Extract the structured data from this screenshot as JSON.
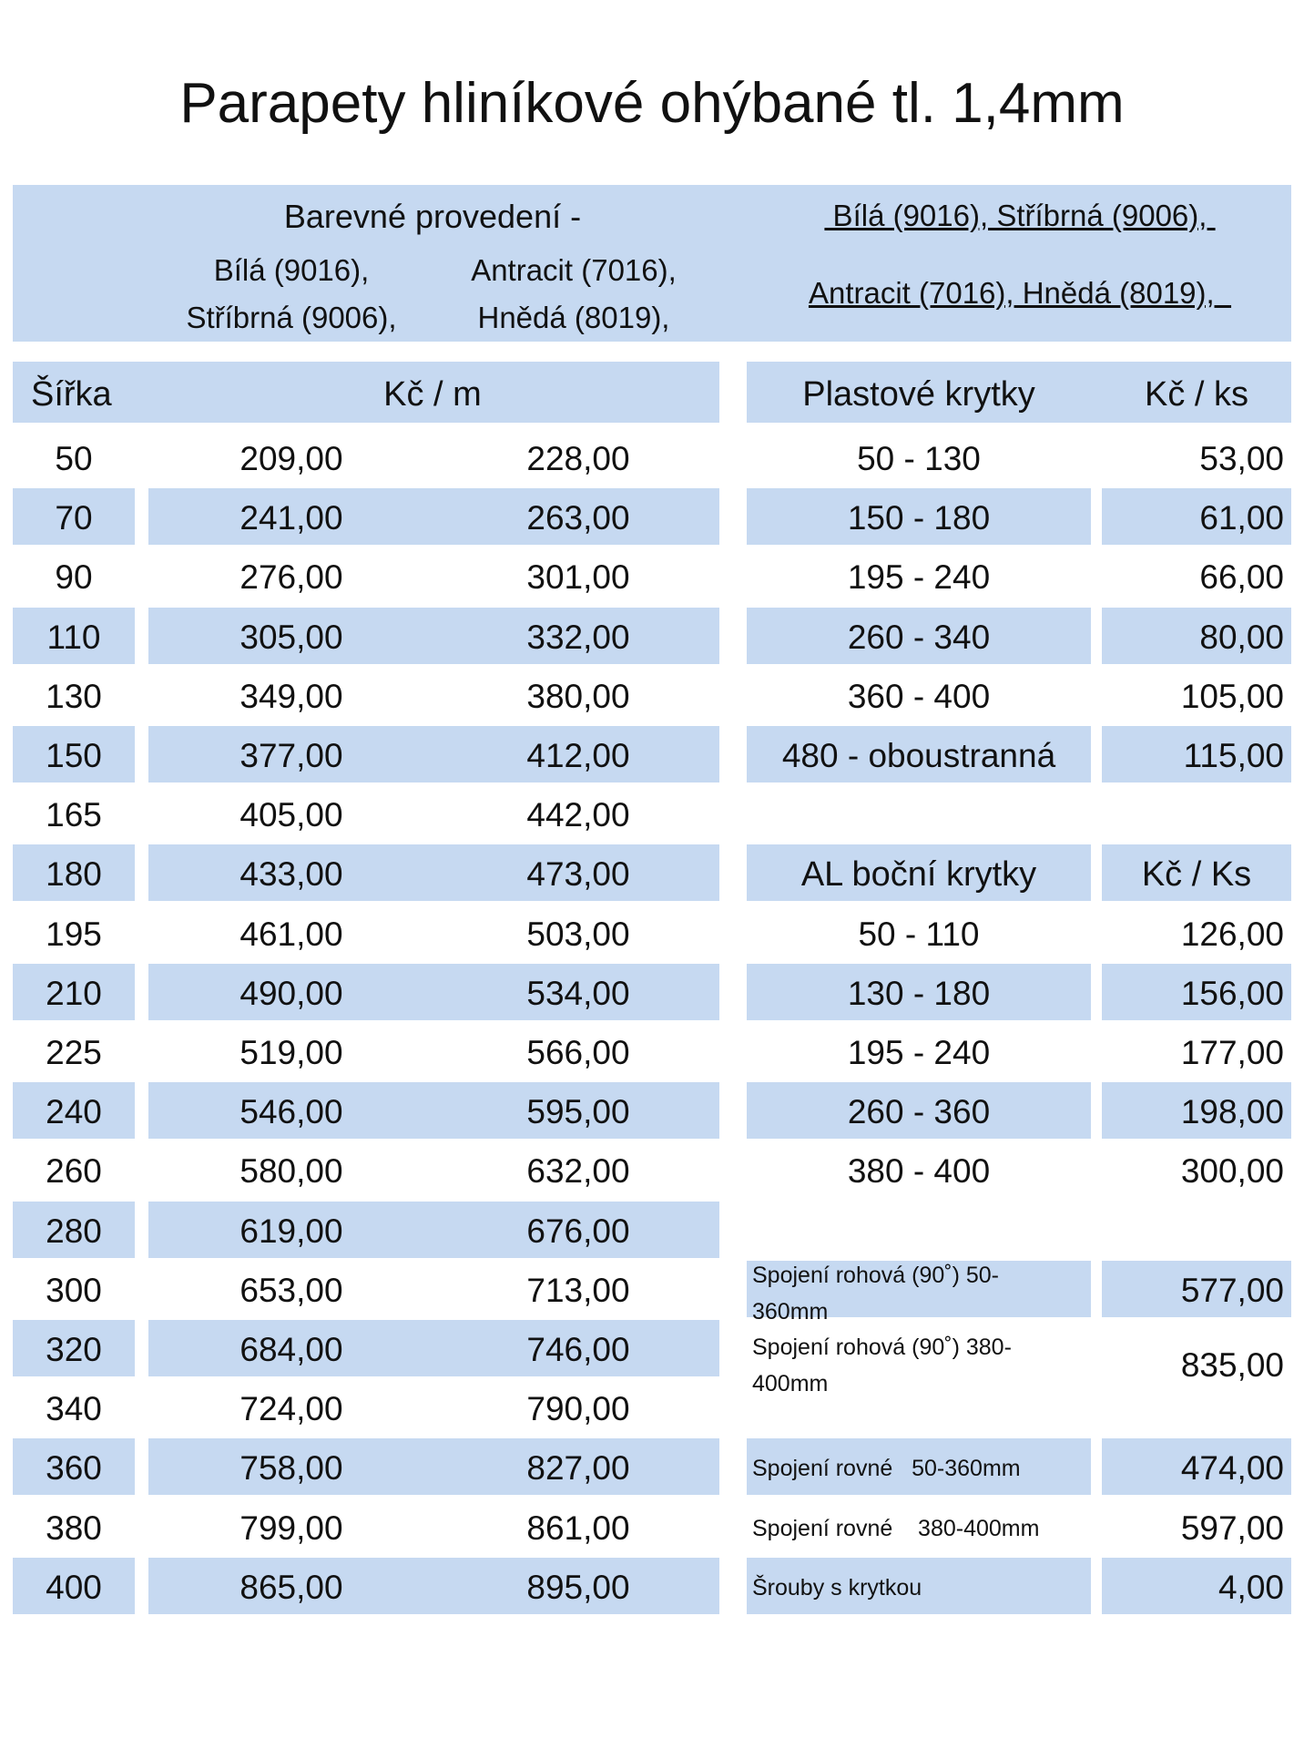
{
  "title": "Parapety hliníkové ohýbané tl. 1,4mm",
  "colors": {
    "band": "#c6d9f1",
    "text": "#111111",
    "background": "#ffffff"
  },
  "header": {
    "left_heading": "Barevné provedení -",
    "col1_line1": "Bílá (9016),",
    "col1_line2": "Stříbrná (9006),",
    "col2_line1": "Antracit (7016),",
    "col2_line2": "Hnědá (8019),",
    "right_line1": " Bílá (9016), Stříbrná (9006), ",
    "right_line2": "Antracit (7016), Hnědá (8019),  "
  },
  "main_table": {
    "width_label": "Šířka",
    "price_label": "Kč / m",
    "rows": [
      {
        "width": "50",
        "price1": "209,00",
        "price2": "228,00"
      },
      {
        "width": "70",
        "price1": "241,00",
        "price2": "263,00"
      },
      {
        "width": "90",
        "price1": "276,00",
        "price2": "301,00"
      },
      {
        "width": "110",
        "price1": "305,00",
        "price2": "332,00"
      },
      {
        "width": "130",
        "price1": "349,00",
        "price2": "380,00"
      },
      {
        "width": "150",
        "price1": "377,00",
        "price2": "412,00"
      },
      {
        "width": "165",
        "price1": "405,00",
        "price2": "442,00"
      },
      {
        "width": "180",
        "price1": "433,00",
        "price2": "473,00"
      },
      {
        "width": "195",
        "price1": "461,00",
        "price2": "503,00"
      },
      {
        "width": "210",
        "price1": "490,00",
        "price2": "534,00"
      },
      {
        "width": "225",
        "price1": "519,00",
        "price2": "566,00"
      },
      {
        "width": "240",
        "price1": "546,00",
        "price2": "595,00"
      },
      {
        "width": "260",
        "price1": "580,00",
        "price2": "632,00"
      },
      {
        "width": "280",
        "price1": "619,00",
        "price2": "676,00"
      },
      {
        "width": "300",
        "price1": "653,00",
        "price2": "713,00"
      },
      {
        "width": "320",
        "price1": "684,00",
        "price2": "746,00"
      },
      {
        "width": "340",
        "price1": "724,00",
        "price2": "790,00"
      },
      {
        "width": "360",
        "price1": "758,00",
        "price2": "827,00"
      },
      {
        "width": "380",
        "price1": "799,00",
        "price2": "861,00"
      },
      {
        "width": "400",
        "price1": "865,00",
        "price2": "895,00"
      }
    ]
  },
  "plastic_caps": {
    "label": "Plastové krytky",
    "unit": "Kč / ks",
    "rows": [
      {
        "range": "50  - 130",
        "price": "53,00"
      },
      {
        "range": "150 - 180",
        "price": "61,00"
      },
      {
        "range": "195 - 240",
        "price": "66,00"
      },
      {
        "range": "260 - 340",
        "price": "80,00"
      },
      {
        "range": "360 - 400",
        "price": "105,00"
      },
      {
        "range": "480 - oboustranná",
        "price": "115,00"
      }
    ]
  },
  "al_caps": {
    "label": "AL boční krytky",
    "unit": "Kč / Ks",
    "rows": [
      {
        "range": "50  - 110",
        "price": "126,00"
      },
      {
        "range": "130 - 180",
        "price": "156,00"
      },
      {
        "range": "195 - 240",
        "price": "177,00"
      },
      {
        "range": "260 - 360",
        "price": "198,00"
      },
      {
        "range": "380 - 400",
        "price": "300,00"
      }
    ]
  },
  "accessories": [
    {
      "label": "Spojení rohová (90˚) 50-360mm",
      "price": "577,00"
    },
    {
      "label": "Spojení rohová (90˚) 380-400mm",
      "price": "835,00"
    },
    {
      "label": "Spojení rovné   50-360mm",
      "price": "474,00"
    },
    {
      "label": "Spojení rovné    380-400mm",
      "price": "597,00"
    },
    {
      "label": "Šrouby s krytkou",
      "price": "4,00"
    }
  ]
}
